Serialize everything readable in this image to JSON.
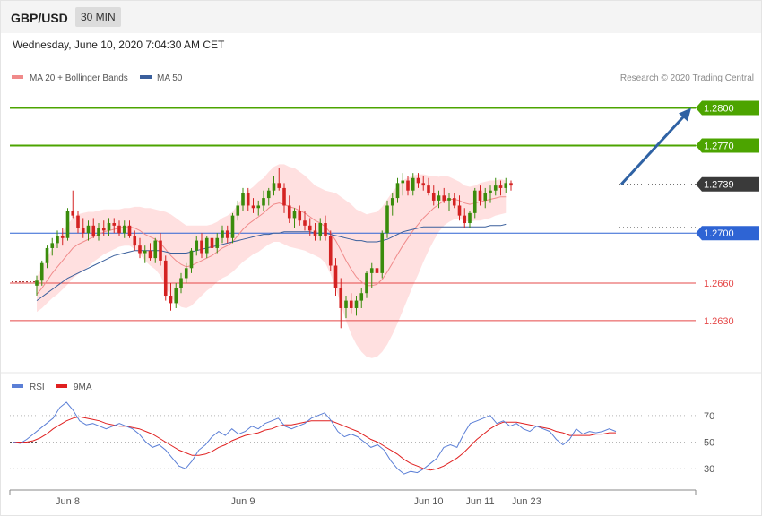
{
  "header": {
    "symbol": "GBP/USD",
    "timeframe": "30 MIN",
    "datetime": "Wednesday, June 10, 2020 7:04:30 AM CET",
    "credit": "Research © 2020 Trading Central"
  },
  "colors": {
    "bull": "#3a8c0c",
    "bear": "#d42222",
    "band": "#ffd6d6",
    "ma20": "#f08a8a",
    "ma50": "#3a5f9c",
    "green_line": "#4ca400",
    "blue_line": "#2e64d4",
    "red_line": "#e54848",
    "arrow": "#2f62a4",
    "rsi": "#5b7fd6",
    "rsi_ma": "#e02020"
  },
  "chart_data": [
    {
      "type": "candlestick",
      "legend": [
        {
          "name": "MA 20 + Bollinger Bands",
          "color": "#f08a8a"
        },
        {
          "name": "MA 50",
          "color": "#3a5f9c"
        }
      ],
      "ylim": [
        1.2592,
        1.2814
      ],
      "levels": [
        {
          "value": 1.28,
          "label": "1.2800",
          "style": "resistance"
        },
        {
          "value": 1.277,
          "label": "1.2770",
          "style": "resistance"
        },
        {
          "value": 1.2739,
          "label": "1.2739",
          "style": "last"
        },
        {
          "value": 1.27,
          "label": "1.2700",
          "style": "pivot"
        },
        {
          "value": 1.266,
          "label": "1.2660",
          "style": "support"
        },
        {
          "value": 1.263,
          "label": "1.2630",
          "style": "support"
        }
      ],
      "forecast_arrow": {
        "from": 1.2739,
        "to": 1.28
      },
      "ohlc": [
        [
          1.2658,
          1.2666,
          1.265,
          1.2662
        ],
        [
          1.2662,
          1.2678,
          1.2658,
          1.2676
        ],
        [
          1.2676,
          1.269,
          1.2672,
          1.2688
        ],
        [
          1.2688,
          1.2696,
          1.2682,
          1.2692
        ],
        [
          1.2692,
          1.2702,
          1.2688,
          1.2698
        ],
        [
          1.2698,
          1.2704,
          1.269,
          1.2696
        ],
        [
          1.2696,
          1.272,
          1.2694,
          1.2718
        ],
        [
          1.2718,
          1.2734,
          1.2712,
          1.2714
        ],
        [
          1.2714,
          1.2718,
          1.27,
          1.2704
        ],
        [
          1.2704,
          1.2712,
          1.2696,
          1.27
        ],
        [
          1.27,
          1.271,
          1.2694,
          1.2706
        ],
        [
          1.2706,
          1.2712,
          1.2696,
          1.2698
        ],
        [
          1.2698,
          1.2708,
          1.2694,
          1.2704
        ],
        [
          1.2704,
          1.271,
          1.2698,
          1.2702
        ],
        [
          1.2702,
          1.2712,
          1.2698,
          1.2708
        ],
        [
          1.2708,
          1.2712,
          1.27,
          1.2706
        ],
        [
          1.2706,
          1.271,
          1.2698,
          1.27
        ],
        [
          1.27,
          1.271,
          1.2696,
          1.2706
        ],
        [
          1.2706,
          1.271,
          1.2696,
          1.2698
        ],
        [
          1.2698,
          1.2702,
          1.2686,
          1.269
        ],
        [
          1.269,
          1.2696,
          1.268,
          1.2684
        ],
        [
          1.2684,
          1.269,
          1.2676,
          1.2686
        ],
        [
          1.2686,
          1.2692,
          1.2678,
          1.268
        ],
        [
          1.268,
          1.2696,
          1.2676,
          1.2694
        ],
        [
          1.2694,
          1.27,
          1.2674,
          1.2678
        ],
        [
          1.2678,
          1.2682,
          1.2646,
          1.265
        ],
        [
          1.265,
          1.266,
          1.2638,
          1.2644
        ],
        [
          1.2644,
          1.266,
          1.264,
          1.2656
        ],
        [
          1.2656,
          1.2668,
          1.2652,
          1.2664
        ],
        [
          1.2664,
          1.2676,
          1.266,
          1.2672
        ],
        [
          1.2672,
          1.2688,
          1.2668,
          1.2686
        ],
        [
          1.2686,
          1.2698,
          1.2682,
          1.2694
        ],
        [
          1.2694,
          1.27,
          1.268,
          1.2684
        ],
        [
          1.2684,
          1.2698,
          1.268,
          1.2696
        ],
        [
          1.2696,
          1.27,
          1.2684,
          1.2688
        ],
        [
          1.2688,
          1.27,
          1.2684,
          1.2696
        ],
        [
          1.2696,
          1.2706,
          1.2692,
          1.2702
        ],
        [
          1.2702,
          1.2706,
          1.2692,
          1.2696
        ],
        [
          1.2696,
          1.2716,
          1.2692,
          1.2714
        ],
        [
          1.2714,
          1.2726,
          1.271,
          1.2722
        ],
        [
          1.2722,
          1.2736,
          1.2718,
          1.2732
        ],
        [
          1.2732,
          1.2736,
          1.2718,
          1.2722
        ],
        [
          1.2722,
          1.2728,
          1.2716,
          1.272
        ],
        [
          1.272,
          1.2726,
          1.2714,
          1.2722
        ],
        [
          1.2722,
          1.2734,
          1.2718,
          1.2728
        ],
        [
          1.2728,
          1.2736,
          1.2722,
          1.2734
        ],
        [
          1.2734,
          1.2746,
          1.273,
          1.274
        ],
        [
          1.274,
          1.2752,
          1.2734,
          1.2736
        ],
        [
          1.2736,
          1.274,
          1.2716,
          1.2722
        ],
        [
          1.2722,
          1.273,
          1.2708,
          1.2712
        ],
        [
          1.2712,
          1.272,
          1.2704,
          1.2718
        ],
        [
          1.2718,
          1.2722,
          1.2706,
          1.271
        ],
        [
          1.271,
          1.2718,
          1.2702,
          1.2706
        ],
        [
          1.2706,
          1.2712,
          1.2698,
          1.2702
        ],
        [
          1.2702,
          1.2708,
          1.2694,
          1.2698
        ],
        [
          1.2698,
          1.2712,
          1.2694,
          1.2708
        ],
        [
          1.2708,
          1.2714,
          1.2694,
          1.2698
        ],
        [
          1.2698,
          1.2702,
          1.267,
          1.2674
        ],
        [
          1.2674,
          1.268,
          1.265,
          1.2656
        ],
        [
          1.2656,
          1.2664,
          1.2624,
          1.264
        ],
        [
          1.264,
          1.265,
          1.2632,
          1.2646
        ],
        [
          1.2646,
          1.2652,
          1.2636,
          1.264
        ],
        [
          1.264,
          1.265,
          1.2634,
          1.2646
        ],
        [
          1.2646,
          1.2656,
          1.264,
          1.2652
        ],
        [
          1.2652,
          1.267,
          1.2648,
          1.2668
        ],
        [
          1.2668,
          1.2676,
          1.2656,
          1.2672
        ],
        [
          1.2672,
          1.268,
          1.2664,
          1.2668
        ],
        [
          1.2668,
          1.2702,
          1.2664,
          1.27
        ],
        [
          1.27,
          1.2726,
          1.2696,
          1.2722
        ],
        [
          1.2722,
          1.2732,
          1.2714,
          1.2728
        ],
        [
          1.2728,
          1.2744,
          1.2724,
          1.274
        ],
        [
          1.274,
          1.2748,
          1.273,
          1.2742
        ],
        [
          1.2742,
          1.2746,
          1.273,
          1.2734
        ],
        [
          1.2734,
          1.2748,
          1.273,
          1.2744
        ],
        [
          1.2744,
          1.2748,
          1.2736,
          1.274
        ],
        [
          1.274,
          1.2746,
          1.2734,
          1.2738
        ],
        [
          1.2738,
          1.2744,
          1.273,
          1.2732
        ],
        [
          1.2732,
          1.2738,
          1.2722,
          1.2726
        ],
        [
          1.2726,
          1.2734,
          1.272,
          1.273
        ],
        [
          1.273,
          1.2736,
          1.2724,
          1.2726
        ],
        [
          1.2726,
          1.2732,
          1.2718,
          1.2728
        ],
        [
          1.2728,
          1.2732,
          1.272,
          1.2722
        ],
        [
          1.2722,
          1.273,
          1.271,
          1.2714
        ],
        [
          1.2714,
          1.272,
          1.2704,
          1.2708
        ],
        [
          1.2708,
          1.2718,
          1.2704,
          1.2716
        ],
        [
          1.2716,
          1.2736,
          1.2712,
          1.2734
        ],
        [
          1.2734,
          1.2738,
          1.2722,
          1.2726
        ],
        [
          1.2726,
          1.2736,
          1.272,
          1.2732
        ],
        [
          1.2732,
          1.2738,
          1.2724,
          1.2734
        ],
        [
          1.2734,
          1.2744,
          1.273,
          1.2738
        ],
        [
          1.2738,
          1.2742,
          1.273,
          1.2736
        ],
        [
          1.2736,
          1.2744,
          1.2732,
          1.274
        ],
        [
          1.274,
          1.2742,
          1.2734,
          1.2738
        ]
      ],
      "ma20": [
        1.2651,
        1.2656,
        1.2662,
        1.2668,
        1.2673,
        1.2678,
        1.2683,
        1.2688,
        1.2691,
        1.2693,
        1.2695,
        1.2697,
        1.2699,
        1.2701,
        1.2702,
        1.2703,
        1.2704,
        1.2705,
        1.2705,
        1.2704,
        1.2702,
        1.2699,
        1.2697,
        1.2695,
        1.2692,
        1.2687,
        1.2682,
        1.2678,
        1.2675,
        1.2673,
        1.2674,
        1.2676,
        1.2678,
        1.268,
        1.2682,
        1.2685,
        1.2688,
        1.269,
        1.2693,
        1.2698,
        1.2703,
        1.2707,
        1.271,
        1.2713,
        1.2716,
        1.272,
        1.2723,
        1.2724,
        1.2723,
        1.2721,
        1.272,
        1.2718,
        1.2716,
        1.2713,
        1.271,
        1.2708,
        1.2705,
        1.27,
        1.2694,
        1.2686,
        1.2678,
        1.2671,
        1.2665,
        1.2661,
        1.2658,
        1.2658,
        1.2659,
        1.2663,
        1.2669,
        1.2676,
        1.2683,
        1.269,
        1.2696,
        1.2702,
        1.2707,
        1.2712,
        1.2716,
        1.272,
        1.2723,
        1.2726,
        1.2727,
        1.2727,
        1.2726,
        1.2724,
        1.2723,
        1.2724,
        1.2725,
        1.2726,
        1.2727,
        1.2728,
        1.2729,
        1.2729
      ],
      "band_width": [
        14,
        16,
        18,
        20,
        22,
        23,
        24,
        24,
        24,
        23,
        22,
        20,
        19,
        18,
        17,
        16,
        15,
        15,
        15,
        17,
        19,
        21,
        23,
        24,
        26,
        30,
        33,
        34,
        34,
        33,
        32,
        30,
        28,
        26,
        25,
        24,
        24,
        24,
        24,
        25,
        26,
        27,
        27,
        28,
        28,
        29,
        30,
        31,
        32,
        32,
        32,
        31,
        30,
        29,
        28,
        28,
        29,
        33,
        38,
        43,
        48,
        52,
        54,
        56,
        57,
        58,
        58,
        58,
        58,
        57,
        55,
        52,
        48,
        44,
        40,
        35,
        30,
        26,
        22,
        20,
        18,
        16,
        15,
        14,
        14,
        14,
        15,
        15,
        15,
        14,
        14,
        13
      ],
      "ma50": [
        1.2646,
        1.2649,
        1.2652,
        1.2655,
        1.2658,
        1.2661,
        1.2664,
        1.2666,
        1.2668,
        1.267,
        1.2672,
        1.2674,
        1.2676,
        1.2678,
        1.268,
        1.2682,
        1.2683,
        1.2684,
        1.2685,
        1.2686,
        1.2686,
        1.2686,
        1.2686,
        1.2686,
        1.2686,
        1.2685,
        1.2684,
        1.2684,
        1.2684,
        1.2684,
        1.2685,
        1.2686,
        1.2687,
        1.2688,
        1.2689,
        1.269,
        1.2691,
        1.2692,
        1.2693,
        1.2694,
        1.2695,
        1.2696,
        1.2697,
        1.2698,
        1.2699,
        1.2699,
        1.27,
        1.27,
        1.2701,
        1.2701,
        1.2701,
        1.2701,
        1.2701,
        1.2701,
        1.27,
        1.27,
        1.27,
        1.2699,
        1.2698,
        1.2697,
        1.2696,
        1.2695,
        1.2694,
        1.2694,
        1.2693,
        1.2693,
        1.2693,
        1.2694,
        1.2695,
        1.2697,
        1.2699,
        1.2701,
        1.2702,
        1.2703,
        1.2704,
        1.2705,
        1.2705,
        1.2705,
        1.2705,
        1.2705,
        1.2705,
        1.2705,
        1.2705,
        1.2705,
        1.2705,
        1.2705,
        1.2705,
        1.2705,
        1.2706,
        1.2706,
        1.2706,
        1.2707
      ]
    },
    {
      "type": "line",
      "legend": [
        {
          "name": "RSI",
          "color": "#5b7fd6"
        },
        {
          "name": "9MA",
          "color": "#e02020"
        }
      ],
      "ylim": [
        18,
        82
      ],
      "yticks": [
        70,
        50,
        30
      ],
      "rsi": [
        50,
        49,
        52,
        56,
        60,
        64,
        68,
        76,
        80,
        74,
        66,
        63,
        64,
        62,
        60,
        62,
        64,
        62,
        60,
        56,
        50,
        46,
        48,
        44,
        38,
        32,
        30,
        36,
        44,
        48,
        54,
        58,
        55,
        60,
        56,
        58,
        62,
        60,
        64,
        66,
        68,
        62,
        60,
        62,
        64,
        68,
        70,
        72,
        66,
        58,
        54,
        56,
        54,
        50,
        46,
        48,
        44,
        36,
        30,
        26,
        28,
        27,
        30,
        34,
        38,
        46,
        48,
        46,
        56,
        64,
        66,
        68,
        70,
        64,
        66,
        62,
        64,
        60,
        58,
        62,
        60,
        58,
        52,
        48,
        52,
        60,
        56,
        58,
        57,
        58,
        60,
        58
      ],
      "rsi_ma": [
        50,
        50,
        50,
        51,
        53,
        56,
        60,
        63,
        66,
        68,
        69,
        68,
        67,
        66,
        64,
        63,
        62,
        62,
        61,
        60,
        58,
        56,
        53,
        50,
        47,
        44,
        42,
        40,
        40,
        41,
        43,
        46,
        48,
        51,
        53,
        55,
        56,
        57,
        59,
        60,
        62,
        63,
        63,
        64,
        65,
        66,
        66,
        66,
        66,
        64,
        62,
        60,
        58,
        55,
        52,
        50,
        47,
        44,
        41,
        37,
        34,
        32,
        30,
        29,
        30,
        32,
        35,
        38,
        42,
        47,
        52,
        56,
        60,
        63,
        65,
        65,
        65,
        64,
        63,
        62,
        61,
        60,
        58,
        57,
        55,
        55,
        55,
        55,
        56,
        56,
        57,
        57
      ]
    }
  ],
  "xaxis": {
    "labels": [
      "Jun 8",
      "Jun 9",
      "Jun 10",
      "Jun 11",
      "Jun 23"
    ],
    "label_index": [
      6,
      40,
      76,
      86,
      95
    ]
  }
}
